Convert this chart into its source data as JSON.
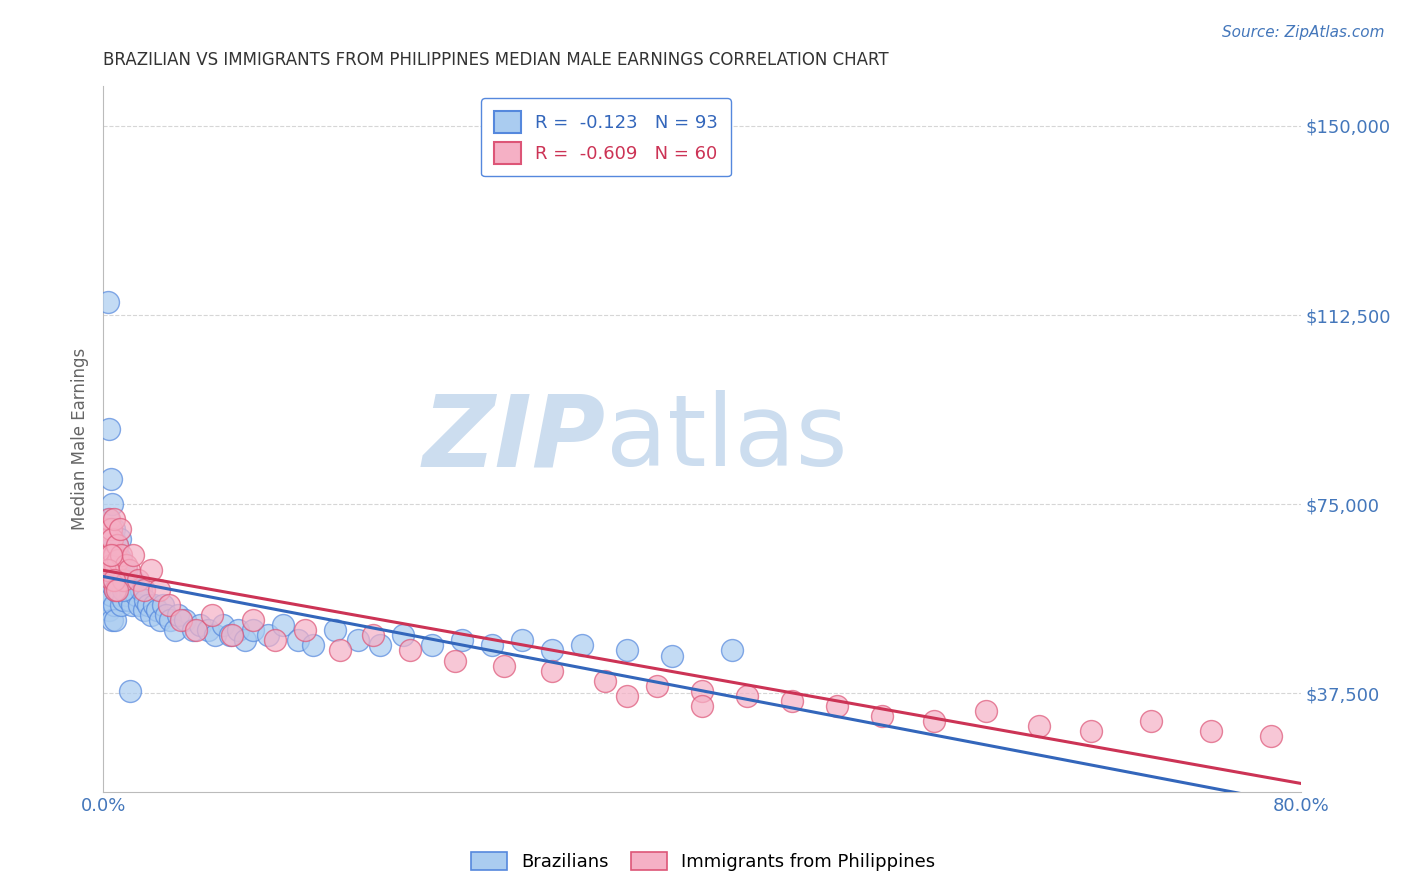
{
  "title": "BRAZILIAN VS IMMIGRANTS FROM PHILIPPINES MEDIAN MALE EARNINGS CORRELATION CHART",
  "source": "Source: ZipAtlas.com",
  "xlabel": "",
  "ylabel": "Median Male Earnings",
  "x_min": 0.0,
  "x_max": 0.8,
  "y_min": 18000,
  "y_max": 158000,
  "y_ticks": [
    37500,
    75000,
    112500,
    150000
  ],
  "y_tick_labels": [
    "$37,500",
    "$75,000",
    "$112,500",
    "$150,000"
  ],
  "x_ticks": [
    0.0,
    0.1,
    0.2,
    0.3,
    0.4,
    0.5,
    0.6,
    0.7,
    0.8
  ],
  "x_tick_labels": [
    "0.0%",
    "",
    "",
    "",
    "",
    "",
    "",
    "",
    "80.0%"
  ],
  "brazil_color": "#aaccf0",
  "brazil_edge_color": "#5588dd",
  "phil_color": "#f5b0c5",
  "phil_edge_color": "#dd5577",
  "brazil_line_color": "#3366bb",
  "phil_line_color": "#cc3355",
  "brazil_R": -0.123,
  "brazil_N": 93,
  "phil_R": -0.609,
  "phil_N": 60,
  "grid_color": "#cccccc",
  "title_color": "#333333",
  "axis_label_color": "#666666",
  "tick_label_color": "#4477bb",
  "watermark_color": "#ccddef",
  "brazil_x": [
    0.001,
    0.002,
    0.002,
    0.003,
    0.003,
    0.003,
    0.004,
    0.004,
    0.004,
    0.005,
    0.005,
    0.005,
    0.006,
    0.006,
    0.006,
    0.007,
    0.007,
    0.007,
    0.008,
    0.008,
    0.008,
    0.009,
    0.009,
    0.01,
    0.01,
    0.011,
    0.011,
    0.012,
    0.012,
    0.013,
    0.013,
    0.014,
    0.015,
    0.016,
    0.017,
    0.018,
    0.019,
    0.02,
    0.022,
    0.024,
    0.025,
    0.027,
    0.028,
    0.03,
    0.032,
    0.034,
    0.036,
    0.038,
    0.04,
    0.042,
    0.045,
    0.048,
    0.05,
    0.055,
    0.06,
    0.065,
    0.07,
    0.075,
    0.08,
    0.085,
    0.09,
    0.095,
    0.1,
    0.11,
    0.12,
    0.13,
    0.14,
    0.155,
    0.17,
    0.185,
    0.2,
    0.22,
    0.24,
    0.26,
    0.28,
    0.3,
    0.32,
    0.35,
    0.38,
    0.42,
    0.003,
    0.004,
    0.005,
    0.006,
    0.007,
    0.008,
    0.009,
    0.01,
    0.011,
    0.012,
    0.013,
    0.015,
    0.018
  ],
  "brazil_y": [
    60000,
    65000,
    58000,
    72000,
    62000,
    56000,
    68000,
    60000,
    54000,
    70000,
    63000,
    57000,
    66000,
    59000,
    52000,
    68000,
    62000,
    55000,
    64000,
    58000,
    52000,
    67000,
    60000,
    65000,
    58000,
    63000,
    57000,
    61000,
    55000,
    62000,
    56000,
    60000,
    58000,
    57000,
    56000,
    58000,
    55000,
    60000,
    57000,
    55000,
    58000,
    54000,
    56000,
    55000,
    53000,
    55000,
    54000,
    52000,
    55000,
    53000,
    52000,
    50000,
    53000,
    52000,
    50000,
    51000,
    50000,
    49000,
    51000,
    49000,
    50000,
    48000,
    50000,
    49000,
    51000,
    48000,
    47000,
    50000,
    48000,
    47000,
    49000,
    47000,
    48000,
    47000,
    48000,
    46000,
    47000,
    46000,
    45000,
    46000,
    115000,
    90000,
    80000,
    75000,
    70000,
    65000,
    62000,
    60000,
    68000,
    64000,
    58000,
    62000,
    38000
  ],
  "phil_x": [
    0.001,
    0.002,
    0.003,
    0.003,
    0.004,
    0.004,
    0.005,
    0.005,
    0.006,
    0.006,
    0.007,
    0.007,
    0.008,
    0.008,
    0.009,
    0.01,
    0.011,
    0.012,
    0.013,
    0.015,
    0.017,
    0.02,
    0.023,
    0.027,
    0.032,
    0.037,
    0.044,
    0.052,
    0.062,
    0.073,
    0.086,
    0.1,
    0.115,
    0.135,
    0.158,
    0.18,
    0.205,
    0.235,
    0.268,
    0.3,
    0.335,
    0.37,
    0.4,
    0.43,
    0.46,
    0.49,
    0.52,
    0.555,
    0.59,
    0.625,
    0.66,
    0.7,
    0.74,
    0.78,
    0.003,
    0.005,
    0.007,
    0.009,
    0.35,
    0.4
  ],
  "phil_y": [
    65000,
    70000,
    68000,
    62000,
    72000,
    65000,
    70000,
    63000,
    68000,
    60000,
    65000,
    72000,
    63000,
    58000,
    67000,
    64000,
    70000,
    65000,
    60000,
    63000,
    62000,
    65000,
    60000,
    58000,
    62000,
    58000,
    55000,
    52000,
    50000,
    53000,
    49000,
    52000,
    48000,
    50000,
    46000,
    49000,
    46000,
    44000,
    43000,
    42000,
    40000,
    39000,
    38000,
    37000,
    36000,
    35000,
    33000,
    32000,
    34000,
    31000,
    30000,
    32000,
    30000,
    29000,
    62000,
    65000,
    60000,
    58000,
    37000,
    35000
  ]
}
